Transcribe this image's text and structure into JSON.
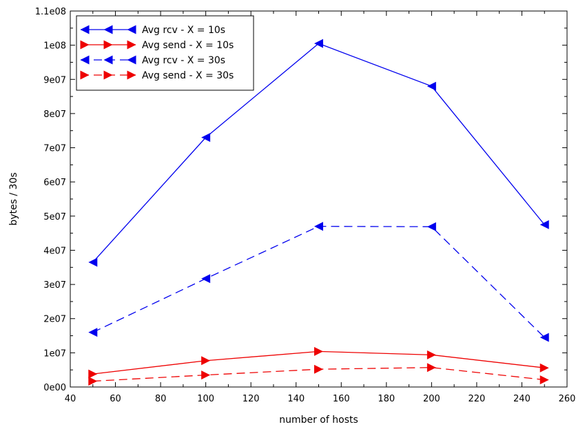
{
  "chart_data": {
    "type": "line",
    "xlabel": "number of hosts",
    "ylabel": "bytes / 30s",
    "xlim": [
      40,
      260
    ],
    "ylim": [
      0,
      110000000
    ],
    "x_ticks": [
      40,
      60,
      80,
      100,
      120,
      140,
      160,
      180,
      200,
      220,
      240,
      260
    ],
    "x_tick_labels": [
      "40",
      "60",
      "80",
      "100",
      "120",
      "140",
      "160",
      "180",
      "200",
      "220",
      "240",
      "260"
    ],
    "y_ticks": [
      0,
      10000000,
      20000000,
      30000000,
      40000000,
      50000000,
      60000000,
      70000000,
      80000000,
      90000000,
      100000000,
      110000000
    ],
    "y_tick_labels": [
      "0e00",
      "1e07",
      "2e07",
      "3e07",
      "4e07",
      "5e07",
      "6e07",
      "7e07",
      "8e07",
      "9e07",
      "1e08",
      "1.1e08"
    ],
    "grid": false,
    "legend_position": "top-left",
    "series": [
      {
        "name": "Avg rcv - X = 10s",
        "color": "#0000ee",
        "dash": "solid",
        "marker": "triangle-left",
        "x": [
          50,
          100,
          150,
          200,
          250
        ],
        "y": [
          36500000,
          73000000,
          100500000,
          88000000,
          47500000
        ]
      },
      {
        "name": "Avg send - X = 10s",
        "color": "#ee0000",
        "dash": "solid",
        "marker": "triangle-right",
        "x": [
          50,
          100,
          150,
          200,
          250
        ],
        "y": [
          3800000,
          7700000,
          10400000,
          9400000,
          5600000
        ]
      },
      {
        "name": "Avg rcv - X = 30s",
        "color": "#0000ee",
        "dash": "dashed",
        "marker": "triangle-left",
        "x": [
          50,
          100,
          150,
          200,
          250
        ],
        "y": [
          16000000,
          31700000,
          47000000,
          46900000,
          14500000
        ]
      },
      {
        "name": "Avg send - X = 30s",
        "color": "#ee0000",
        "dash": "dashed",
        "marker": "triangle-right",
        "x": [
          50,
          100,
          150,
          200,
          250
        ],
        "y": [
          1700000,
          3500000,
          5200000,
          5700000,
          2100000
        ]
      }
    ]
  }
}
